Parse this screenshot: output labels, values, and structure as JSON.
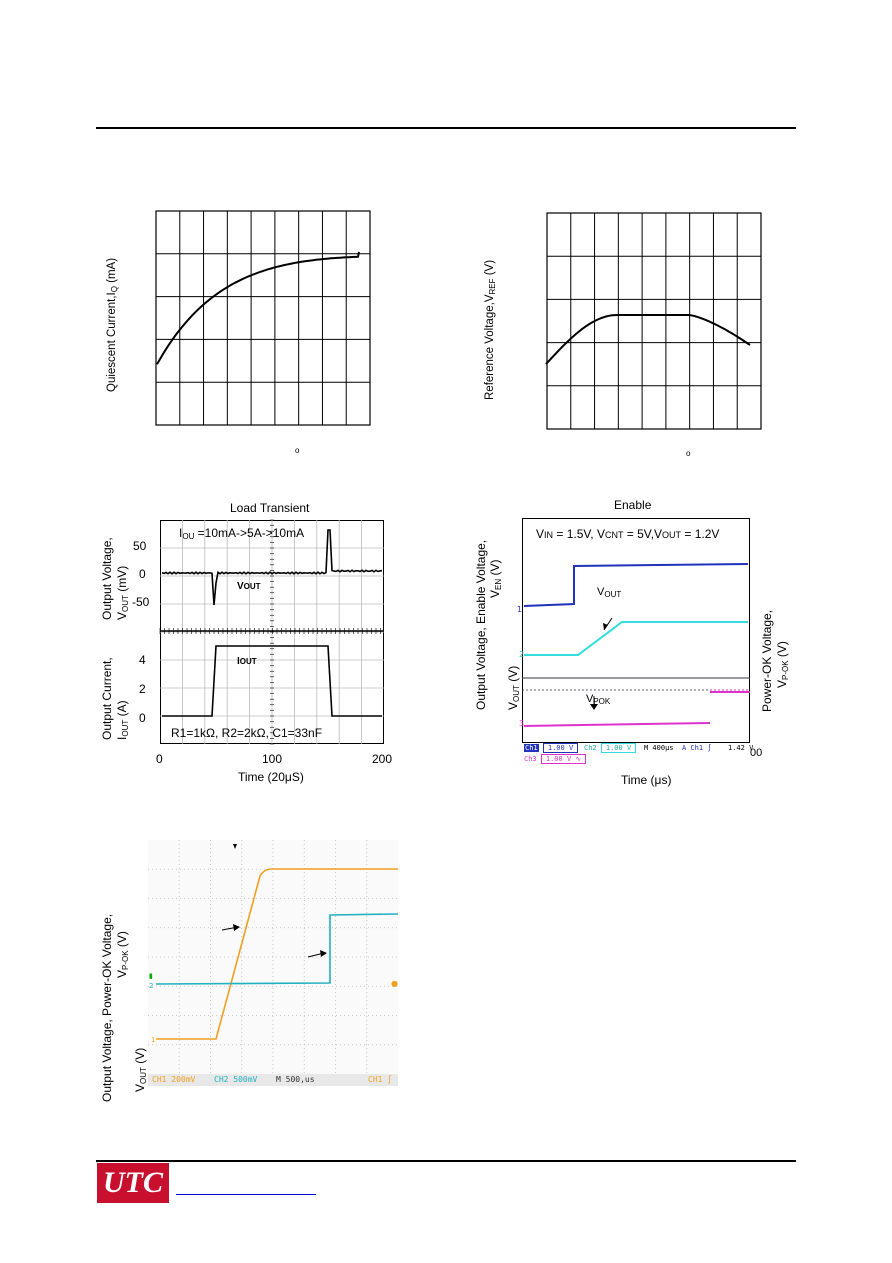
{
  "chart1": {
    "ylabel": "Quiescent Current,I",
    "ylabel_sub": "Q",
    "ylabel_tail": " (mA)",
    "degree": "o"
  },
  "chart2": {
    "ylabel": "Reference Voltage,V",
    "ylabel_sub": "REF",
    "ylabel_tail": " (V)",
    "degree": "o"
  },
  "chart3": {
    "title": "Load Transient",
    "ylabel_top_1": "Output Voltage,",
    "ylabel_top_2": "V",
    "ylabel_top_2_sub": "OUT",
    "ylabel_top_2_tail": " (mV)",
    "ylabel_bot_1": "Output Current,",
    "ylabel_bot_2": "I",
    "ylabel_bot_2_sub": "OUT",
    "ylabel_bot_2_tail": " (A)",
    "annotation": "I",
    "annotation_sub": "OU",
    "annotation_tail": " =10mA->5A->10mA",
    "vout_label": "V",
    "vout_label_sub": "OUT",
    "iout_label": "I",
    "iout_label_sub": "OUT",
    "conditions": "R1=1kΩ, R2=2kΩ, C1=33nF",
    "xlabel": "Time (20μS)",
    "yticks_top": [
      "50",
      "0",
      "-50"
    ],
    "yticks_bot": [
      "4",
      "2",
      "0"
    ],
    "xticks": [
      "0",
      "100",
      "200"
    ]
  },
  "chart4": {
    "title": "Enable",
    "ylabel_left_1": "Output Voltage,  Enable Voltage,",
    "ylabel_left_2": "V",
    "ylabel_left_2_sub": "EN",
    "ylabel_left_2_tail": " (V)",
    "ylabel_left_3": "V",
    "ylabel_left_3_sub": "OUT",
    "ylabel_left_3_tail": " (V)",
    "ylabel_right_1": "Power-OK Voltage,",
    "ylabel_right_2": "V",
    "ylabel_right_2_sub": "P-OK",
    "ylabel_right_2_tail": " (V)",
    "conditions": "V",
    "cond_in_sub": "IN",
    "cond_a": " = 1.5V, V",
    "cond_cnt_sub": "CNT",
    "cond_b": "  = 5V,V",
    "cond_out_sub": "OUT",
    "cond_c": " = 1.2V",
    "vout_label": "V",
    "vout_label_sub": "OUT",
    "vpok_label": "V",
    "vpok_label_sub": "POK",
    "xlabel": "Time (μs)",
    "xtick_end": "00",
    "scope": {
      "ch1": "Ch1",
      "ch1_scale": "1.00 V",
      "ch2": "Ch2",
      "ch2_scale": "1.00 V",
      "timebase": "M 400μs",
      "trig": "A  Ch1  ∫",
      "trig_level": "1.42 V",
      "ch3": "Ch3",
      "ch3_scale": "1.00 V ∿"
    },
    "colors": {
      "ch1": "#2233bb",
      "ch2": "#33dddd",
      "ch3": "#dd33cc"
    }
  },
  "chart5": {
    "ylabel_1": "Output Voltage, Power-OK Voltage,",
    "ylabel_2": "V",
    "ylabel_2_sub": "P-OK",
    "ylabel_2_tail": " (V)",
    "ylabel_3": "V",
    "ylabel_3_sub": "OUT",
    "ylabel_3_tail": " (V)",
    "scope": {
      "ch1": "CH1  200mV",
      "ch2": "CH2  500mV",
      "timebase": "M 500,us",
      "trig": "CH1  ∫"
    },
    "colors": {
      "ch1": "#f0a020",
      "ch2": "#20b0c0"
    }
  },
  "footer": {
    "logo": "UTC"
  }
}
